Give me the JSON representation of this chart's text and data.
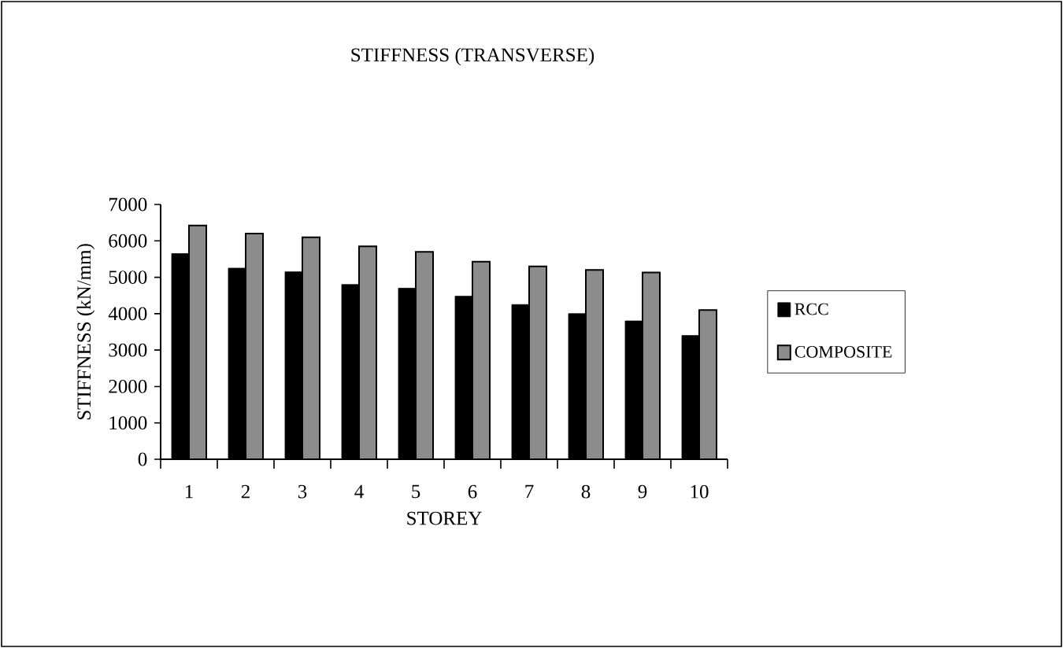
{
  "chart_data": {
    "type": "bar",
    "title": "STIFFNESS (TRANSVERSE)",
    "xlabel": "STOREY",
    "ylabel": "STIFFNESS (kN/mm)",
    "categories": [
      "1",
      "2",
      "3",
      "4",
      "5",
      "6",
      "7",
      "8",
      "9",
      "10"
    ],
    "series": [
      {
        "name": "RCC",
        "color": "#000000",
        "values": [
          5650,
          5250,
          5150,
          4800,
          4700,
          4480,
          4250,
          4000,
          3800,
          3400
        ]
      },
      {
        "name": "COMPOSITE",
        "color": "#8c8c8c",
        "values": [
          6420,
          6200,
          6100,
          5850,
          5700,
          5430,
          5300,
          5200,
          5130,
          4100
        ]
      }
    ],
    "ylim": [
      0,
      7000
    ],
    "yticks": [
      0,
      1000,
      2000,
      3000,
      4000,
      5000,
      6000,
      7000
    ],
    "grid": false,
    "legend": "right"
  }
}
